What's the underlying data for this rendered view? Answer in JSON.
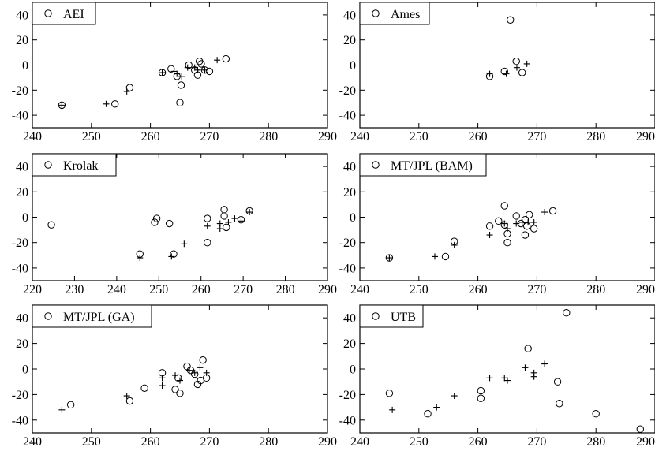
{
  "chart_data": [
    {
      "type": "scatter",
      "legend": "AEI",
      "xlim": [
        240,
        290
      ],
      "ylim": [
        -50,
        50
      ],
      "xticks": [
        240,
        250,
        260,
        270,
        280,
        290
      ],
      "yticks": [
        -40,
        -20,
        0,
        20,
        40
      ],
      "series": [
        {
          "marker": "circle",
          "points": [
            [
              245,
              -32
            ],
            [
              254,
              -31
            ],
            [
              256.5,
              -18
            ],
            [
              262,
              -6
            ],
            [
              263.5,
              -3
            ],
            [
              264.5,
              -9
            ],
            [
              265,
              -30
            ],
            [
              265.2,
              -16
            ],
            [
              266.5,
              0
            ],
            [
              267.5,
              -4
            ],
            [
              268,
              -8
            ],
            [
              268.3,
              3
            ],
            [
              268.6,
              1
            ],
            [
              269.2,
              -4
            ],
            [
              270,
              -5
            ],
            [
              272.8,
              5
            ]
          ]
        },
        {
          "marker": "plus",
          "points": [
            [
              245,
              -32
            ],
            [
              252.5,
              -31
            ],
            [
              256,
              -21
            ],
            [
              262,
              -6
            ],
            [
              264,
              -5
            ],
            [
              264.5,
              -7
            ],
            [
              265.3,
              -9
            ],
            [
              266.3,
              -2
            ],
            [
              267.5,
              -2
            ],
            [
              268,
              -4
            ],
            [
              269.2,
              -4
            ],
            [
              271.3,
              4
            ]
          ]
        }
      ]
    },
    {
      "type": "scatter",
      "legend": "Ames",
      "xlim": [
        240,
        290
      ],
      "ylim": [
        -50,
        50
      ],
      "xticks": [
        240,
        250,
        260,
        270,
        280,
        290
      ],
      "yticks": [
        -40,
        -20,
        0,
        20,
        40
      ],
      "series": [
        {
          "marker": "circle",
          "points": [
            [
              262,
              -9
            ],
            [
              264.5,
              -5
            ],
            [
              265.5,
              36
            ],
            [
              266.5,
              3
            ],
            [
              267.5,
              -6
            ]
          ]
        },
        {
          "marker": "plus",
          "points": [
            [
              262,
              -7
            ],
            [
              264.8,
              -7
            ],
            [
              266.6,
              -2
            ],
            [
              268.3,
              1
            ]
          ]
        }
      ]
    },
    {
      "type": "scatter",
      "legend": "Krolak",
      "xlim": [
        220,
        290
      ],
      "ylim": [
        -50,
        50
      ],
      "xticks": [
        220,
        230,
        240,
        250,
        260,
        270,
        280,
        290
      ],
      "yticks": [
        -40,
        -20,
        0,
        20,
        40
      ],
      "series": [
        {
          "marker": "circle",
          "points": [
            [
              224.5,
              -6
            ],
            [
              249,
              -4
            ],
            [
              249.5,
              -1
            ],
            [
              245.5,
              -29
            ],
            [
              252.5,
              -5
            ],
            [
              253.5,
              -29
            ],
            [
              261.5,
              -1
            ],
            [
              261.5,
              -20
            ],
            [
              265.5,
              6
            ],
            [
              265.5,
              1
            ],
            [
              266,
              -8
            ],
            [
              269.5,
              -2
            ],
            [
              271.5,
              5
            ]
          ]
        },
        {
          "marker": "plus",
          "points": [
            [
              245.5,
              -32
            ],
            [
              253,
              -31
            ],
            [
              256,
              -21
            ],
            [
              261.5,
              -7
            ],
            [
              264.5,
              -5
            ],
            [
              264.5,
              -9
            ],
            [
              266.5,
              -4
            ],
            [
              268,
              -1
            ],
            [
              269.5,
              -3
            ],
            [
              271.5,
              4
            ]
          ]
        }
      ]
    },
    {
      "type": "scatter",
      "legend": "MT/JPL (BAM)",
      "xlim": [
        240,
        290
      ],
      "ylim": [
        -50,
        50
      ],
      "xticks": [
        240,
        250,
        260,
        270,
        280,
        290
      ],
      "yticks": [
        -40,
        -20,
        0,
        20,
        40
      ],
      "series": [
        {
          "marker": "circle",
          "points": [
            [
              245,
              -32
            ],
            [
              254.5,
              -31
            ],
            [
              256,
              -19
            ],
            [
              262,
              -7
            ],
            [
              263.5,
              -3
            ],
            [
              264.5,
              9
            ],
            [
              264.5,
              -6
            ],
            [
              265,
              -13
            ],
            [
              265,
              -20
            ],
            [
              266.5,
              1
            ],
            [
              267.3,
              -5
            ],
            [
              268,
              -2
            ],
            [
              268,
              -14
            ],
            [
              268.3,
              -7
            ],
            [
              268.7,
              2
            ],
            [
              269.5,
              -9
            ],
            [
              272.7,
              5
            ]
          ]
        },
        {
          "marker": "plus",
          "points": [
            [
              245,
              -32
            ],
            [
              252.7,
              -31
            ],
            [
              256,
              -22
            ],
            [
              262,
              -14
            ],
            [
              264.5,
              -5
            ],
            [
              265,
              -9
            ],
            [
              266.5,
              -5
            ],
            [
              267.5,
              -4
            ],
            [
              268.5,
              -4
            ],
            [
              269.5,
              -4
            ],
            [
              271.3,
              4
            ]
          ]
        }
      ]
    },
    {
      "type": "scatter",
      "legend": "MT/JPL (GA)",
      "xlim": [
        240,
        290
      ],
      "ylim": [
        -50,
        50
      ],
      "xticks": [
        240,
        250,
        260,
        270,
        280,
        290
      ],
      "yticks": [
        -40,
        -20,
        0,
        20,
        40
      ],
      "series": [
        {
          "marker": "circle",
          "points": [
            [
              246.5,
              -28
            ],
            [
              256.5,
              -25
            ],
            [
              259,
              -15
            ],
            [
              262,
              -3
            ],
            [
              264.2,
              -16
            ],
            [
              264.7,
              -7
            ],
            [
              265,
              -19
            ],
            [
              266.2,
              2
            ],
            [
              266.8,
              -1
            ],
            [
              267.5,
              -4
            ],
            [
              268,
              -12
            ],
            [
              268.5,
              -9
            ],
            [
              268.9,
              7
            ],
            [
              269.5,
              -7
            ]
          ]
        },
        {
          "marker": "plus",
          "points": [
            [
              245,
              -32
            ],
            [
              256,
              -21
            ],
            [
              262,
              -7
            ],
            [
              262,
              -13
            ],
            [
              264.2,
              -5
            ],
            [
              265,
              -9
            ],
            [
              266.6,
              -1
            ],
            [
              267.5,
              -3
            ],
            [
              268.4,
              1
            ],
            [
              269.5,
              -3
            ]
          ]
        }
      ]
    },
    {
      "type": "scatter",
      "legend": "UTB",
      "xlim": [
        240,
        290
      ],
      "ylim": [
        -50,
        50
      ],
      "xticks": [
        240,
        250,
        260,
        270,
        280,
        290
      ],
      "yticks": [
        -40,
        -20,
        0,
        20,
        40
      ],
      "series": [
        {
          "marker": "circle",
          "points": [
            [
              245,
              -19
            ],
            [
              251.5,
              -35
            ],
            [
              260.5,
              -17
            ],
            [
              260.5,
              -23
            ],
            [
              268.5,
              16
            ],
            [
              273.5,
              -10
            ],
            [
              273.8,
              -27
            ],
            [
              275,
              44
            ],
            [
              280,
              -35
            ],
            [
              287.5,
              -47
            ]
          ]
        },
        {
          "marker": "plus",
          "points": [
            [
              245.5,
              -32
            ],
            [
              253,
              -30
            ],
            [
              256,
              -21
            ],
            [
              262,
              -7
            ],
            [
              264.5,
              -7
            ],
            [
              265,
              -9
            ],
            [
              268,
              1
            ],
            [
              269.5,
              -3
            ],
            [
              269.5,
              -6
            ],
            [
              271.3,
              4
            ]
          ]
        }
      ]
    }
  ]
}
